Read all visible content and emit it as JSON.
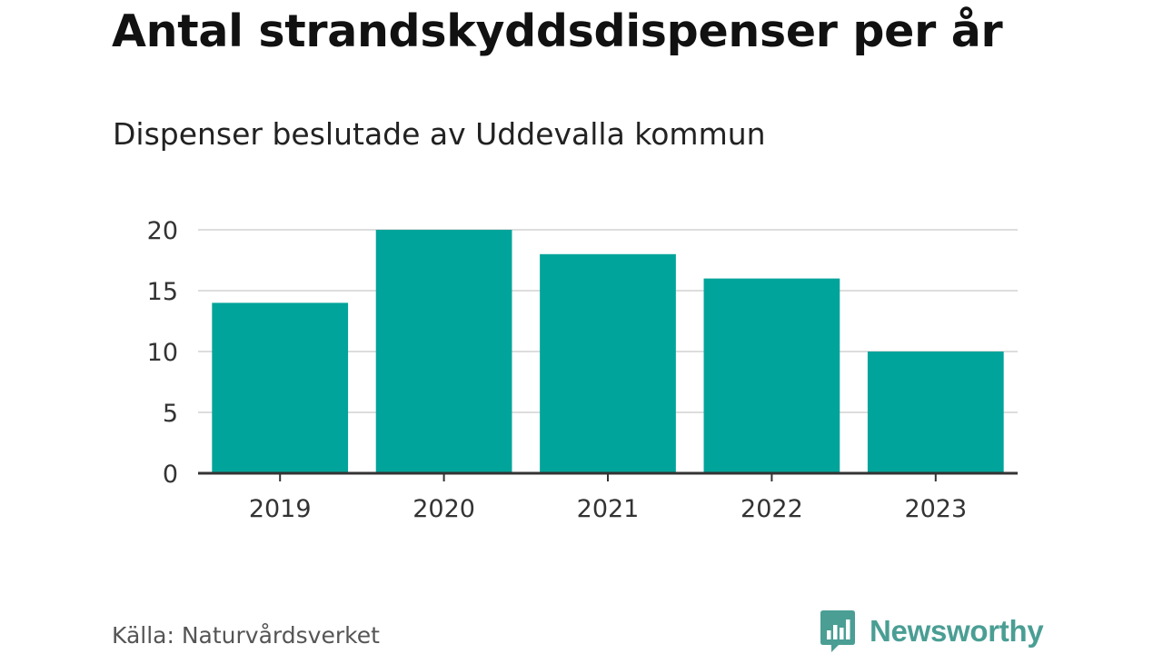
{
  "title": "Antal strandskyddsdispenser per år",
  "subtitle": "Dispenser beslutade av Uddevalla kommun",
  "source": "Källa: Naturvårdsverket",
  "brand": "Newsworthy",
  "colors": {
    "bar": "#00a49a",
    "grid": "#dddddd",
    "axis": "#333333",
    "brand": "#4a9e94"
  },
  "chart_data": {
    "type": "bar",
    "title": "Antal strandskyddsdispenser per år",
    "subtitle": "Dispenser beslutade av Uddevalla kommun",
    "categories": [
      "2019",
      "2020",
      "2021",
      "2022",
      "2023"
    ],
    "values": [
      14,
      20,
      18,
      16,
      10
    ],
    "xlabel": "",
    "ylabel": "",
    "ylim": [
      0,
      20
    ],
    "yticks": [
      0,
      5,
      10,
      15,
      20
    ],
    "grid": true,
    "legend": "none"
  }
}
